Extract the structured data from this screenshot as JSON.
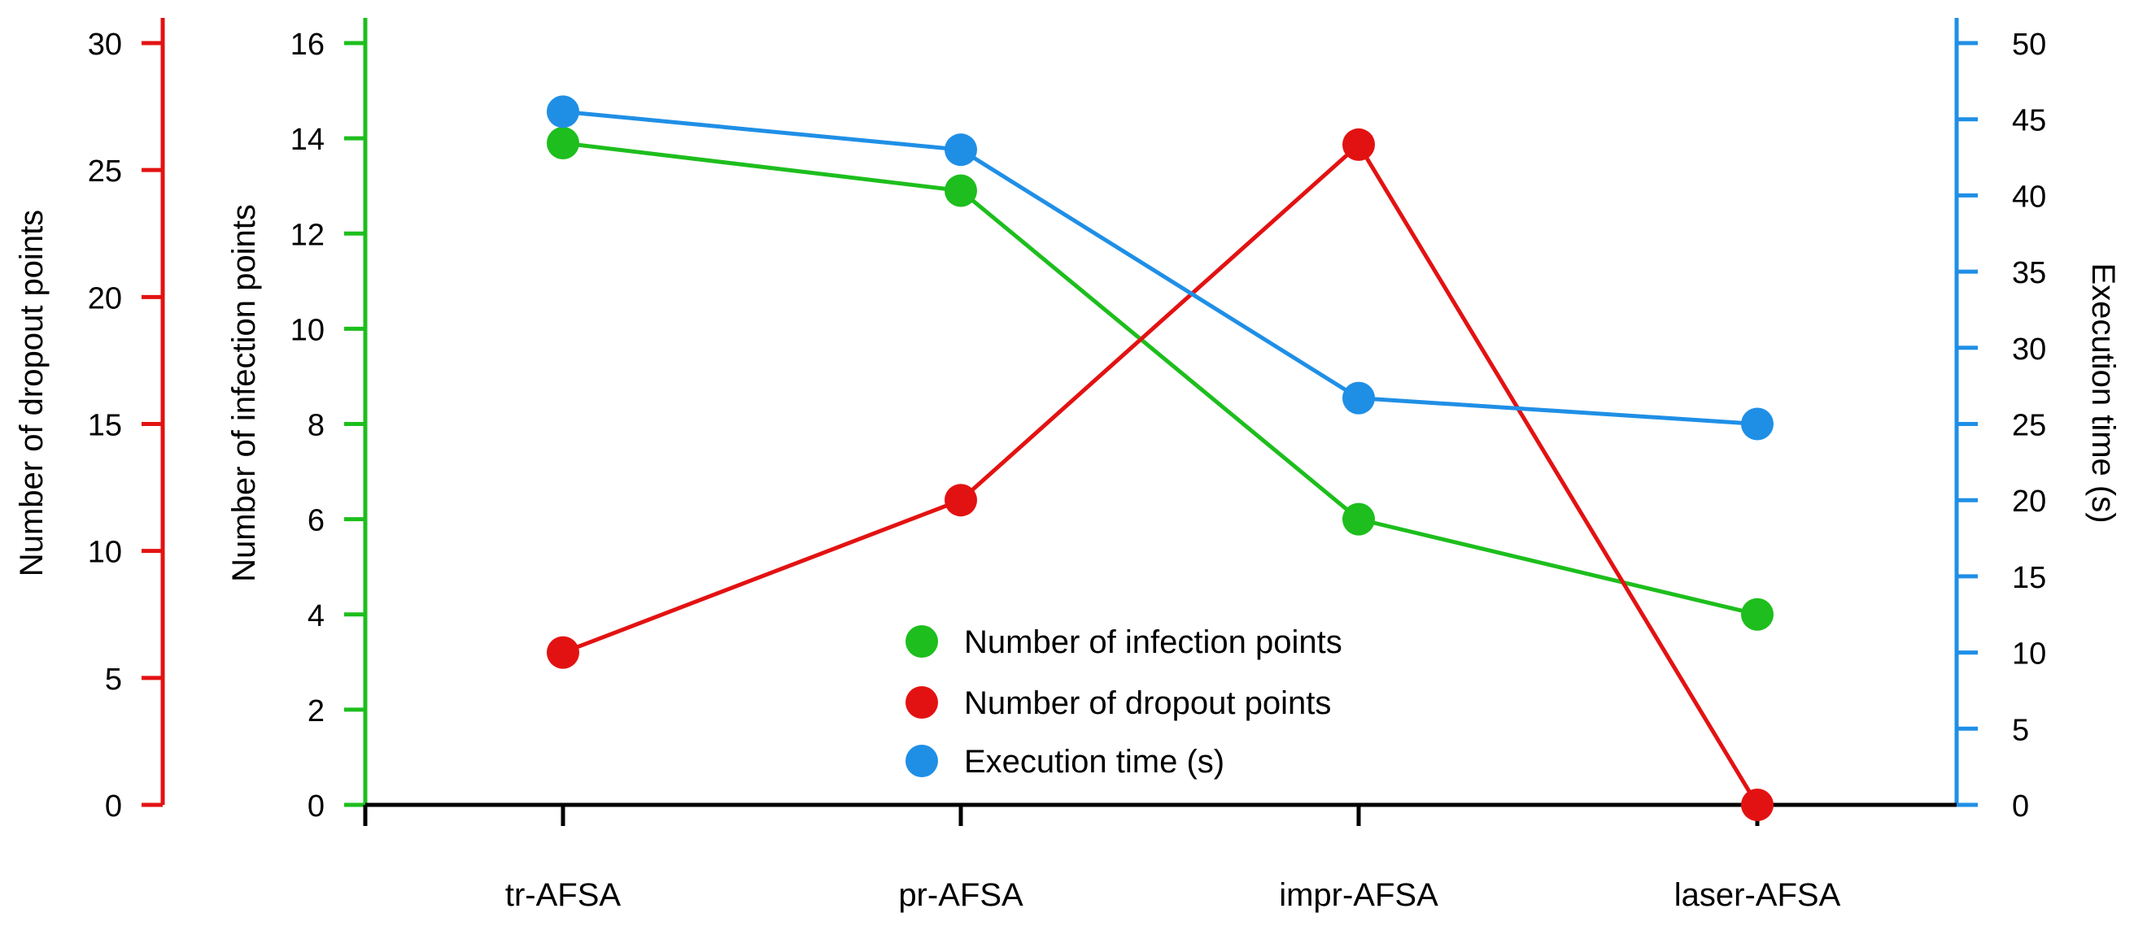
{
  "chart_data": {
    "type": "line",
    "categories": [
      "tr-AFSA",
      "pr-AFSA",
      "impr-AFSA",
      "laser-AFSA"
    ],
    "series": [
      {
        "name": "Number of infection points",
        "axis": "infection",
        "color": "#1dbe1d",
        "values": [
          13.9,
          12.9,
          6.0,
          4.0
        ]
      },
      {
        "name": "Number of dropout points",
        "axis": "dropout",
        "color": "#e31212",
        "values": [
          6,
          12,
          26,
          0
        ]
      },
      {
        "name": "Execution time (s)",
        "axis": "time",
        "color": "#1f8fe6",
        "values": [
          45.5,
          43,
          26.7,
          25
        ]
      }
    ],
    "axes": {
      "dropout": {
        "label": "Number of dropout points",
        "min": 0,
        "max": 30,
        "step": 5,
        "color": "#e31212",
        "position": "far-left"
      },
      "infection": {
        "label": "Number of infection points",
        "min": 0,
        "max": 16,
        "step": 2,
        "color": "#1dbe1d",
        "position": "left"
      },
      "time": {
        "label": "Execution time (s)",
        "min": 0,
        "max": 50,
        "step": 5,
        "color": "#1f8fe6",
        "position": "right"
      }
    },
    "legend": {
      "position": "bottom-center"
    },
    "grid": false
  }
}
